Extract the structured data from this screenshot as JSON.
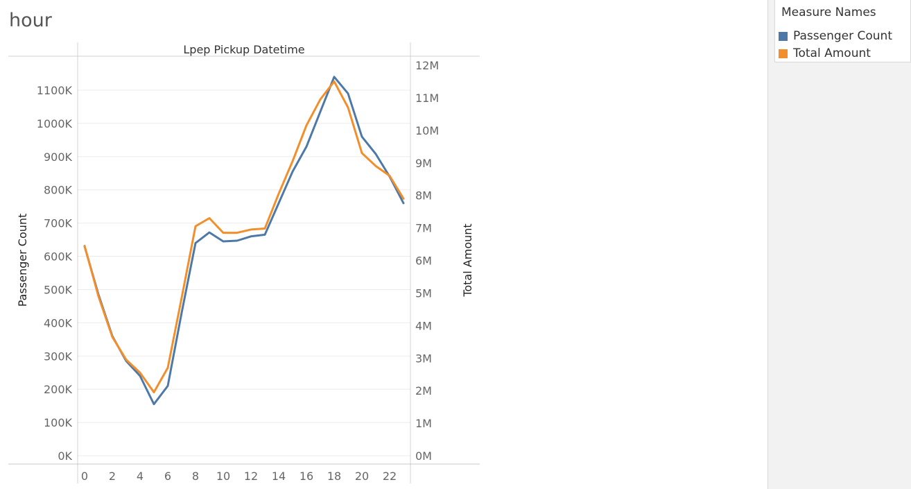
{
  "sheet": {
    "title": "hour"
  },
  "legend": {
    "title": "Measure Names",
    "items": [
      {
        "label": "Passenger Count",
        "color": "#4e79a7"
      },
      {
        "label": "Total Amount",
        "color": "#f28e2b"
      }
    ]
  },
  "chart_data": {
    "type": "line",
    "title": "Lpep Pickup Datetime",
    "xlabel": "",
    "x": [
      0,
      1,
      2,
      3,
      4,
      5,
      6,
      7,
      8,
      9,
      10,
      11,
      12,
      13,
      14,
      15,
      16,
      17,
      18,
      19,
      20,
      21,
      22,
      23
    ],
    "x_ticks": [
      0,
      2,
      4,
      6,
      8,
      10,
      12,
      14,
      16,
      18,
      20,
      22
    ],
    "x_tick_labels": [
      "0",
      "2",
      "4",
      "6",
      "8",
      "10",
      "12",
      "14",
      "16",
      "18",
      "20",
      "22"
    ],
    "y_left": {
      "label": "Passenger Count",
      "ticks": [
        0,
        100000,
        200000,
        300000,
        400000,
        500000,
        600000,
        700000,
        800000,
        900000,
        1000000,
        1100000
      ],
      "tick_labels": [
        "0K",
        "100K",
        "200K",
        "300K",
        "400K",
        "500K",
        "600K",
        "700K",
        "800K",
        "900K",
        "1000K",
        "1100K"
      ]
    },
    "y_right": {
      "label": "Total Amount",
      "ticks": [
        0,
        1000000,
        2000000,
        3000000,
        4000000,
        5000000,
        6000000,
        7000000,
        8000000,
        9000000,
        10000000,
        11000000,
        12000000
      ],
      "tick_labels": [
        "0M",
        "1M",
        "2M",
        "3M",
        "4M",
        "5M",
        "6M",
        "7M",
        "8M",
        "9M",
        "10M",
        "11M",
        "12M"
      ]
    },
    "grid": true,
    "series": [
      {
        "name": "Passenger Count",
        "axis": "left",
        "color": "#4e79a7",
        "values": [
          630000,
          485000,
          360000,
          285000,
          240000,
          155000,
          210000,
          430000,
          640000,
          672000,
          645000,
          647000,
          660000,
          665000,
          760000,
          855000,
          930000,
          1035000,
          1140000,
          1090000,
          960000,
          908000,
          840000,
          760000
        ]
      },
      {
        "name": "Total Amount",
        "axis": "right",
        "color": "#f28e2b",
        "values": [
          6450000,
          4900000,
          3650000,
          2950000,
          2550000,
          1950000,
          2700000,
          4850000,
          7050000,
          7300000,
          6850000,
          6850000,
          6950000,
          6980000,
          8050000,
          9050000,
          10150000,
          10950000,
          11500000,
          10700000,
          9300000,
          8900000,
          8600000,
          7900000
        ]
      }
    ]
  }
}
